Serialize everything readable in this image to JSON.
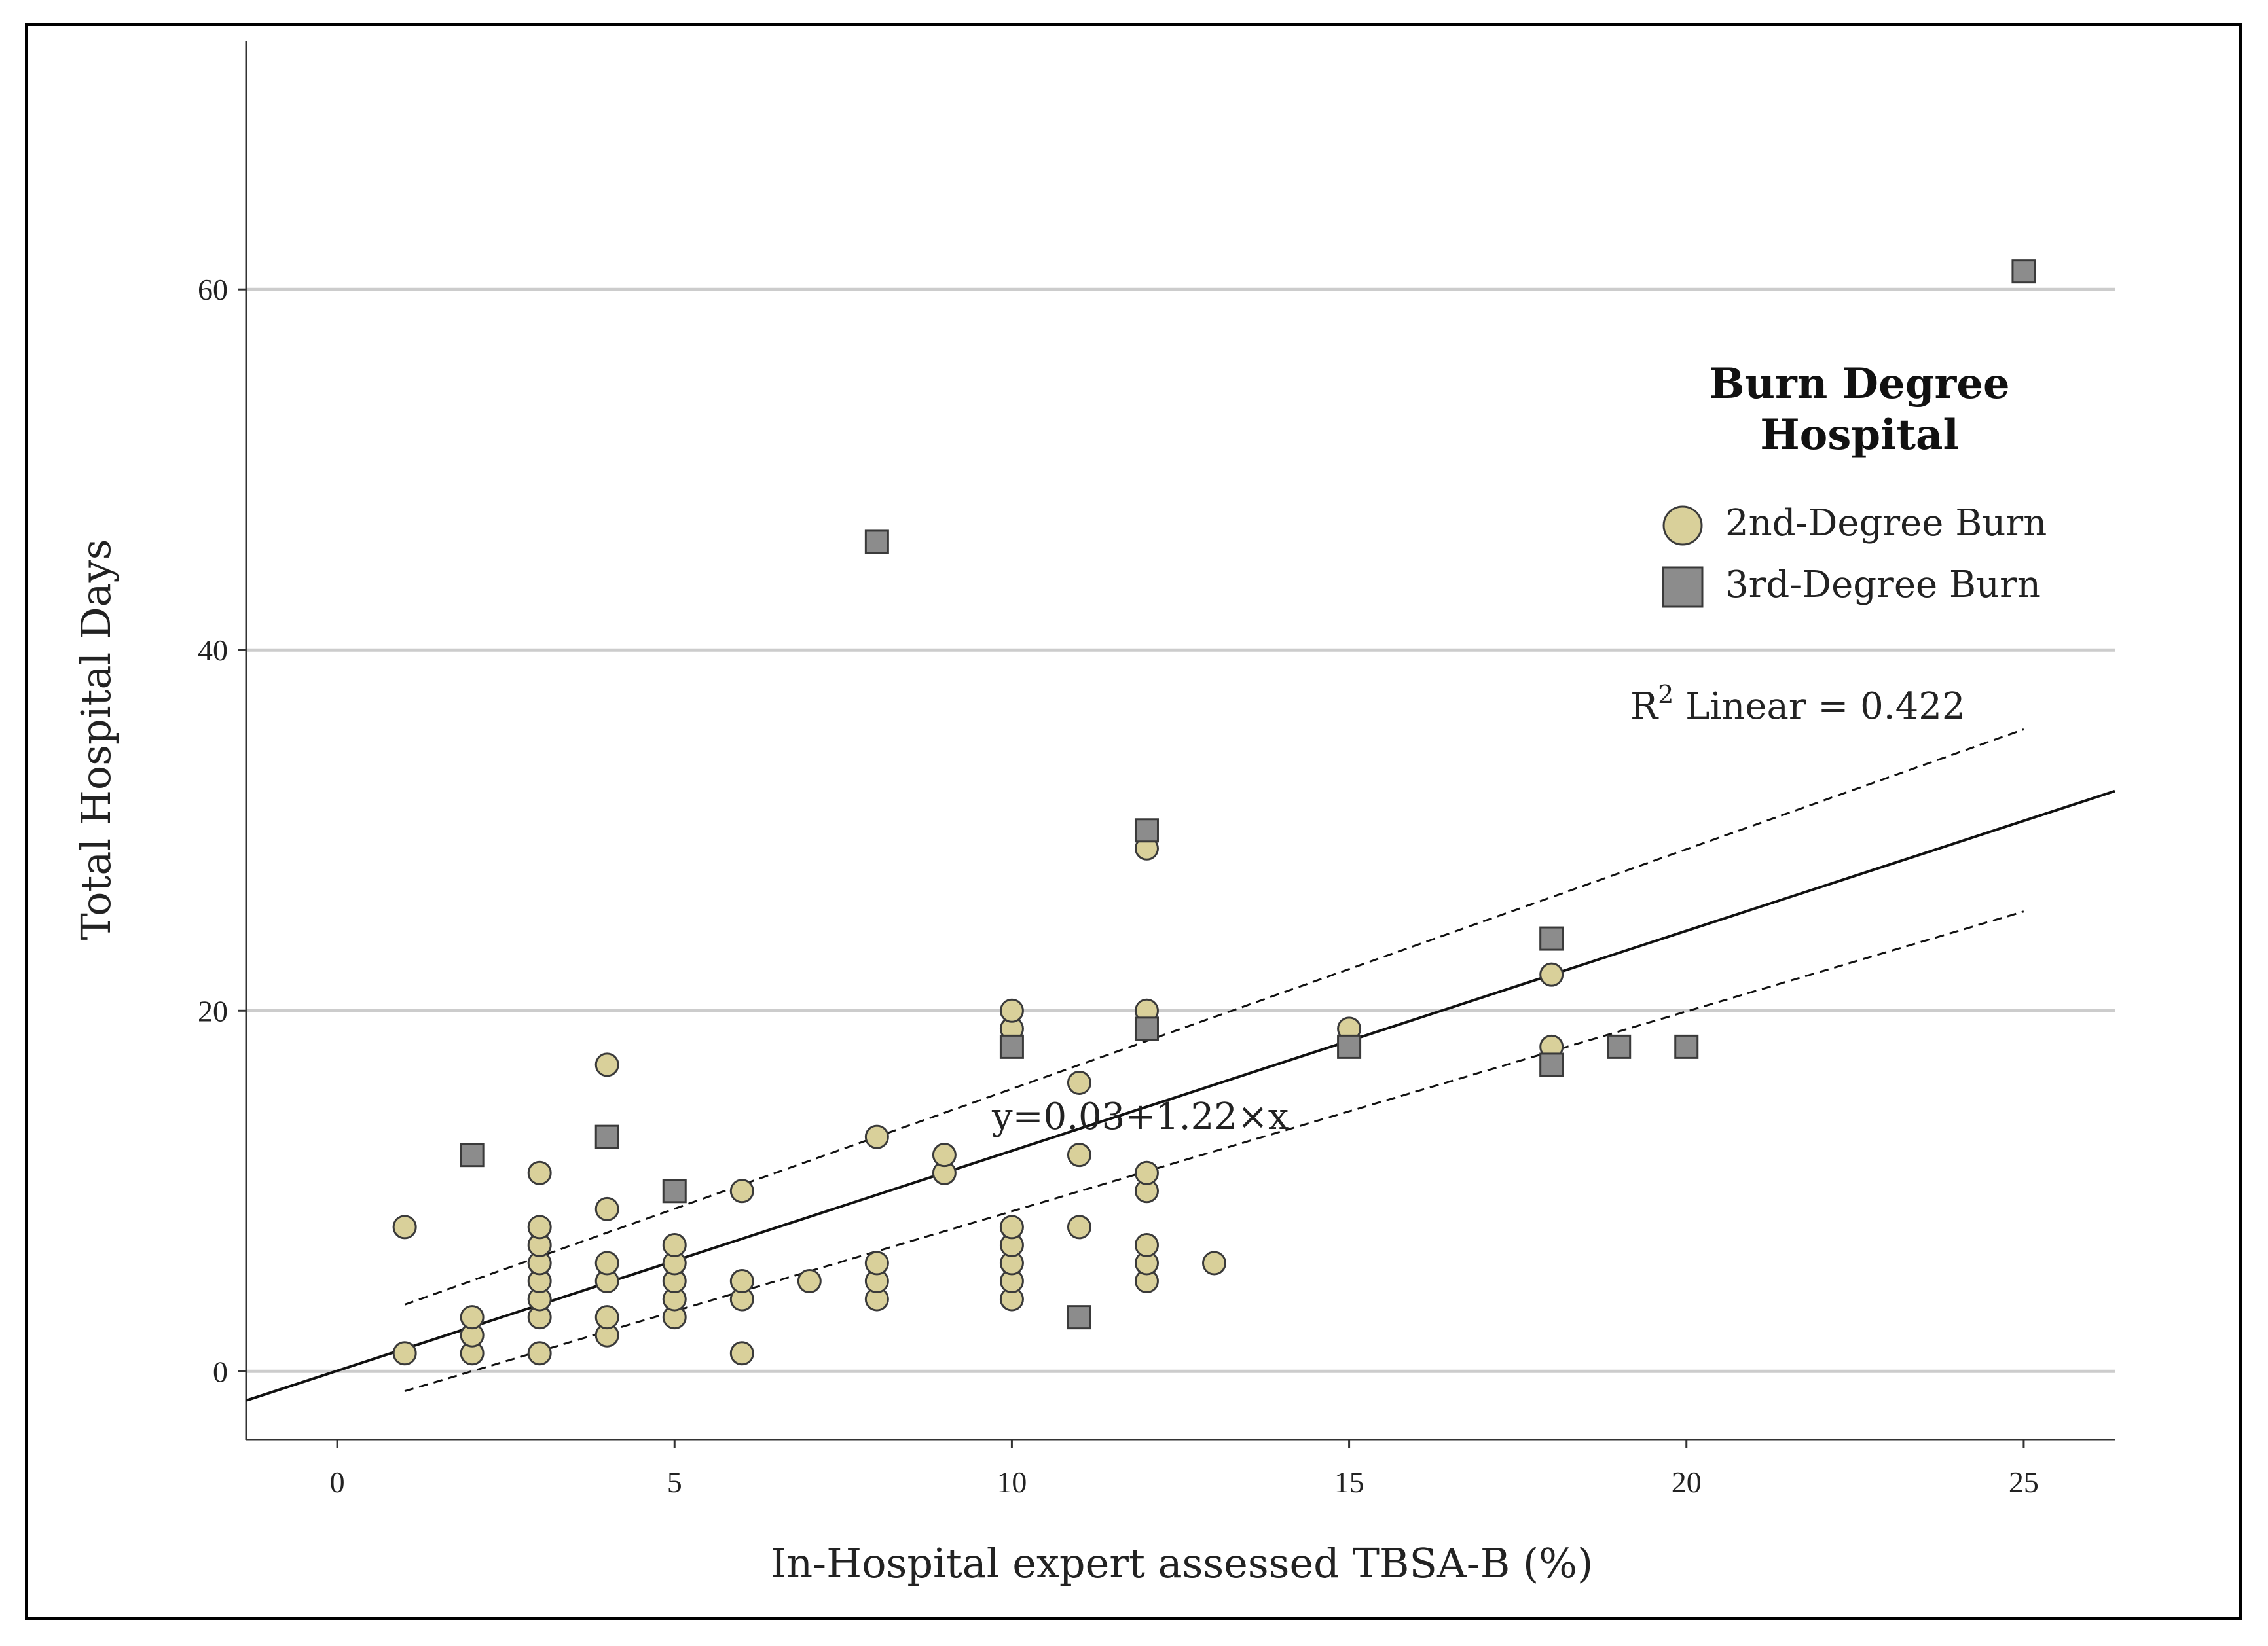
{
  "chart_data": {
    "type": "scatter",
    "title": "",
    "xlabel": "In-Hospital  expert assessed TBSA-B (%)",
    "ylabel": "Total Hospital Days",
    "xlim": [
      -1.35,
      26.35
    ],
    "ylim": [
      -3.8,
      73.8
    ],
    "x_ticks": [
      0,
      5,
      10,
      15,
      20,
      25
    ],
    "y_ticks": [
      0,
      20,
      40,
      60
    ],
    "grid": "horizontal",
    "legend": {
      "title_line1": "Burn Degree",
      "title_line2": "Hospital",
      "position": "top-right",
      "entries": [
        "2nd-Degree Burn",
        "3rd-Degree Burn"
      ]
    },
    "colors": {
      "second_degree": "#d9d09a",
      "third_degree": "#8c8c8c",
      "marker_edge": "#3a3a3a",
      "grid": "#cccccc",
      "fit_line": "#111111"
    },
    "series": [
      {
        "name": "2nd-Degree Burn",
        "marker": "circle",
        "points": [
          [
            1,
            1
          ],
          [
            1,
            8
          ],
          [
            2,
            1
          ],
          [
            2,
            2
          ],
          [
            2,
            3
          ],
          [
            3,
            1
          ],
          [
            3,
            3
          ],
          [
            3,
            4
          ],
          [
            3,
            5
          ],
          [
            3,
            6
          ],
          [
            3,
            7
          ],
          [
            3,
            8
          ],
          [
            3,
            11
          ],
          [
            4,
            2
          ],
          [
            4,
            3
          ],
          [
            4,
            5
          ],
          [
            4,
            6
          ],
          [
            4,
            9
          ],
          [
            4,
            17
          ],
          [
            5,
            3
          ],
          [
            5,
            4
          ],
          [
            5,
            5
          ],
          [
            5,
            6
          ],
          [
            5,
            7
          ],
          [
            6,
            1
          ],
          [
            6,
            4
          ],
          [
            6,
            5
          ],
          [
            6,
            10
          ],
          [
            7,
            5
          ],
          [
            8,
            4
          ],
          [
            8,
            5
          ],
          [
            8,
            6
          ],
          [
            8,
            13
          ],
          [
            9,
            11
          ],
          [
            9,
            12
          ],
          [
            10,
            4
          ],
          [
            10,
            5
          ],
          [
            10,
            6
          ],
          [
            10,
            7
          ],
          [
            10,
            8
          ],
          [
            10,
            19
          ],
          [
            10,
            20
          ],
          [
            11,
            8
          ],
          [
            11,
            12
          ],
          [
            11,
            16
          ],
          [
            12,
            5
          ],
          [
            12,
            6
          ],
          [
            12,
            7
          ],
          [
            12,
            10
          ],
          [
            12,
            11
          ],
          [
            12,
            20
          ],
          [
            12,
            29
          ],
          [
            13,
            6
          ],
          [
            15,
            19
          ],
          [
            18,
            18
          ],
          [
            18,
            22
          ]
        ]
      },
      {
        "name": "3rd-Degree Burn",
        "marker": "square",
        "points": [
          [
            2,
            12
          ],
          [
            4,
            13
          ],
          [
            5,
            10
          ],
          [
            8,
            46
          ],
          [
            10,
            18
          ],
          [
            11,
            3
          ],
          [
            12,
            19
          ],
          [
            12,
            30
          ],
          [
            15,
            18
          ],
          [
            18,
            17
          ],
          [
            18,
            24
          ],
          [
            19,
            18
          ],
          [
            20,
            18
          ],
          [
            25,
            61
          ]
        ]
      }
    ],
    "fit": {
      "intercept": 0.03,
      "slope": 1.22,
      "equation_label": "y=0.03+1.22×x",
      "r2_prefix": "R",
      "r2_sup": "2",
      "r2_suffix": " Linear = 0.422",
      "ci_upper": [
        [
          1,
          3.7
        ],
        [
          25,
          35.6
        ]
      ],
      "ci_lower": [
        [
          1,
          -1.1
        ],
        [
          25,
          25.5
        ]
      ],
      "ci_x_range": [
        1,
        25
      ]
    }
  }
}
